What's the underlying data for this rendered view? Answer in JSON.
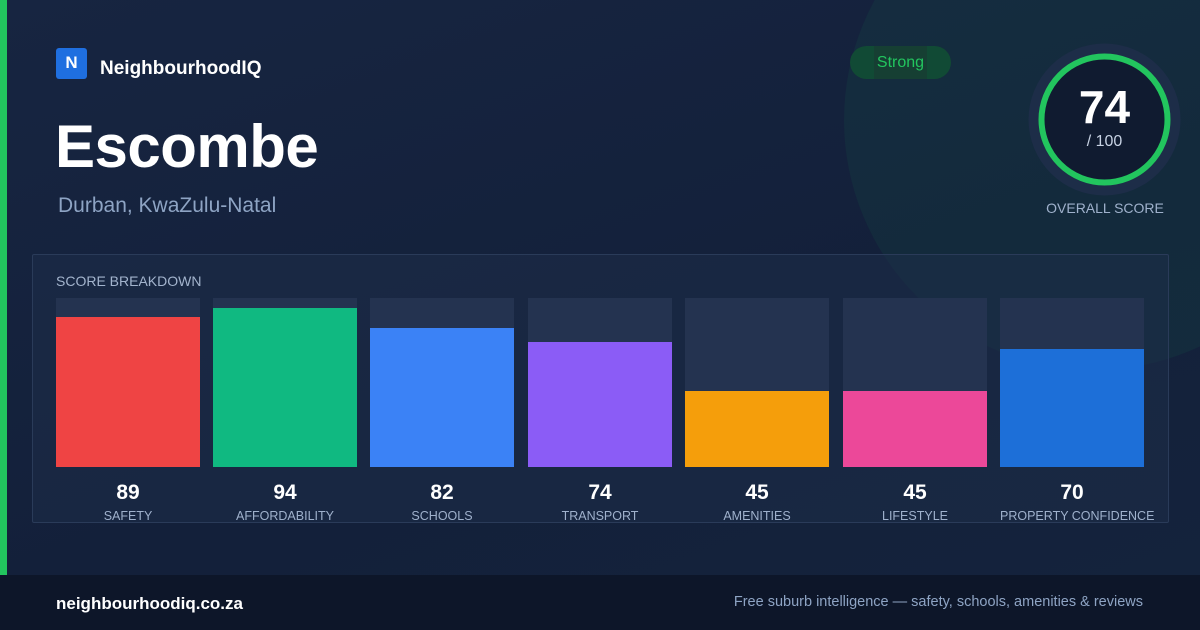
{
  "brand": {
    "logo_letter": "N",
    "name": "NeighbourhoodIQ"
  },
  "suburb": {
    "name": "Escombe",
    "location": "Durban, KwaZulu-Natal"
  },
  "tier_badge": "Strong",
  "overall": {
    "score": "74",
    "score_value": 74,
    "max": "/ 100",
    "label": "OVERALL SCORE",
    "ring_color": "#22c55e"
  },
  "breakdown": {
    "title": "SCORE BREAKDOWN",
    "items": [
      {
        "label": "SAFETY",
        "value": 89,
        "display": "89",
        "color": "#ef4444"
      },
      {
        "label": "AFFORDABILITY",
        "value": 94,
        "display": "94",
        "color": "#10b981"
      },
      {
        "label": "SCHOOLS",
        "value": 82,
        "display": "82",
        "color": "#3b82f6"
      },
      {
        "label": "TRANSPORT",
        "value": 74,
        "display": "74",
        "color": "#8b5cf6"
      },
      {
        "label": "AMENITIES",
        "value": 45,
        "display": "45",
        "color": "#f59e0b"
      },
      {
        "label": "LIFESTYLE",
        "value": 45,
        "display": "45",
        "color": "#ec4899"
      },
      {
        "label": "PROPERTY CONFIDENCE",
        "value": 70,
        "display": "70",
        "color": "#1d6fd8"
      }
    ]
  },
  "footer": {
    "url": "neighbourhoodiq.co.za",
    "tagline": "Free suburb intelligence — safety, schools, amenities & reviews"
  }
}
